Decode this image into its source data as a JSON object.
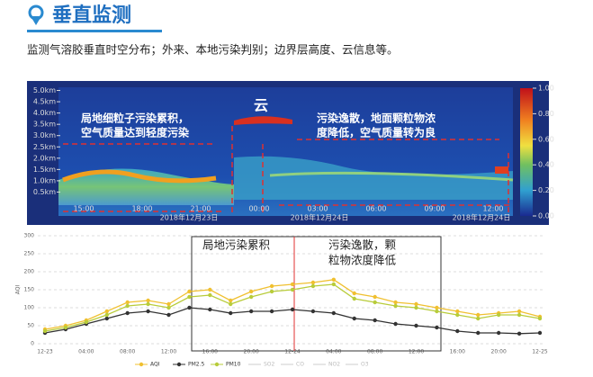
{
  "header": {
    "title": "垂直监测",
    "subtitle": "监测气溶胶垂直时空分布；外来、本地污染判别；边界层高度、云信息等。"
  },
  "chart_data": [
    {
      "type": "heatmap",
      "ylim": [
        0,
        5.3
      ],
      "yticks": [
        {
          "value": 0.5,
          "label": "0.5km"
        },
        {
          "value": 1,
          "label": "1.0km"
        },
        {
          "value": 1.5,
          "label": "1.5km"
        },
        {
          "value": 2,
          "label": "2.0km"
        },
        {
          "value": 2.5,
          "label": "2.5km"
        },
        {
          "value": 3,
          "label": "3.0km"
        },
        {
          "value": 3.5,
          "label": "3.5km"
        },
        {
          "value": 4,
          "label": "4.0km"
        },
        {
          "value": 4.5,
          "label": "4.5km"
        },
        {
          "value": 5,
          "label": "5.0km"
        }
      ],
      "x_labels": [
        "15:00",
        "18:00",
        "21:00",
        "00:00",
        "03:00",
        "06:00",
        "09:00",
        "12:00"
      ],
      "date_labels": [
        "2018年12月23日",
        "2018年12月24日",
        "2018年12月24日"
      ],
      "colorbar_lim": [
        0,
        1
      ],
      "colorbar_ticks": [
        {
          "value": 1,
          "label": "1.00"
        },
        {
          "value": 0.8,
          "label": "0.80"
        },
        {
          "value": 0.6,
          "label": "0.60"
        },
        {
          "value": 0.4,
          "label": "0.40"
        },
        {
          "value": 0.2,
          "label": "0.20"
        },
        {
          "value": 0,
          "label": "0.00"
        }
      ],
      "annotations": [
        {
          "lines": [
            "局地细粒子污染累积，",
            "空气质量达到轻度污染"
          ]
        },
        {
          "lines": [
            "云"
          ]
        },
        {
          "lines": [
            "污染逸散，地面颗粒物浓",
            "度降低，空气质量转为良"
          ]
        }
      ]
    },
    {
      "type": "line",
      "y_label": "AQI",
      "ylim": [
        0,
        300
      ],
      "yticks": [
        0,
        50,
        100,
        150,
        200,
        250,
        300
      ],
      "grid": true,
      "categories": [
        "12-23",
        null,
        "04:00",
        null,
        "08:00",
        null,
        "12:00",
        null,
        "16:00",
        null,
        "20:00",
        null,
        "12-24",
        null,
        "04:00",
        null,
        "08:00",
        null,
        "12:00",
        null,
        "16:00",
        null,
        "20:00",
        null,
        "12-25"
      ],
      "series": [
        {
          "name": "AQI",
          "color": "#f0c030",
          "values": [
            40,
            50,
            65,
            90,
            115,
            120,
            110,
            145,
            150,
            120,
            145,
            160,
            165,
            170,
            178,
            140,
            130,
            115,
            110,
            100,
            90,
            80,
            85,
            90,
            75
          ]
        },
        {
          "name": "PM2.5",
          "color": "#333333",
          "values": [
            30,
            40,
            55,
            70,
            85,
            90,
            80,
            100,
            95,
            85,
            90,
            90,
            95,
            90,
            85,
            70,
            65,
            55,
            50,
            45,
            35,
            30,
            30,
            28,
            30
          ]
        },
        {
          "name": "PM10",
          "color": "#b8cc3a",
          "values": [
            35,
            45,
            60,
            80,
            105,
            110,
            100,
            130,
            135,
            110,
            130,
            145,
            150,
            160,
            165,
            125,
            115,
            105,
            100,
            90,
            80,
            70,
            80,
            80,
            70
          ]
        }
      ],
      "hidden_series": [
        "SO2",
        "CO",
        "NO2",
        "O3"
      ],
      "annotations": [
        {
          "lines": [
            "局地污染累积"
          ]
        },
        {
          "lines": [
            "污染逸散，颗",
            "粒物浓度降低"
          ]
        }
      ]
    }
  ]
}
